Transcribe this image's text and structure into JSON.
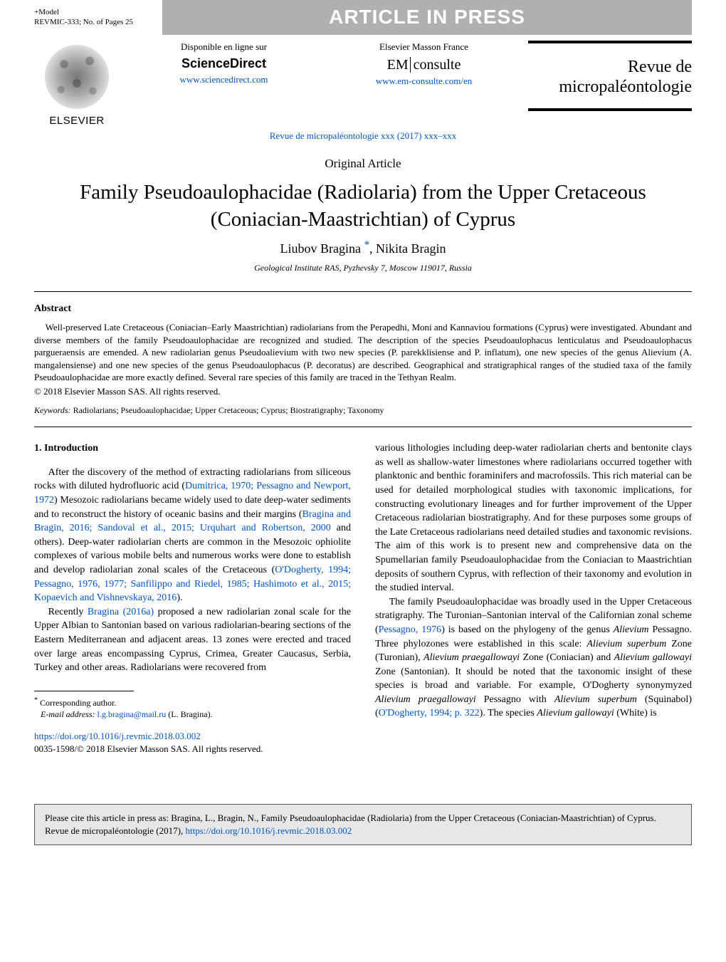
{
  "running_head": {
    "model_line": "+Model",
    "ref_line": "REVMIC-333;   No. of Pages 25",
    "banner": "ARTICLE IN PRESS"
  },
  "masthead": {
    "logo_caption": "ELSEVIER",
    "left_col": {
      "line1": "Disponible en ligne sur",
      "brand": "ScienceDirect",
      "url": "www.sciencedirect.com"
    },
    "mid_col": {
      "line1": "Elsevier Masson France",
      "brand_left": "EM",
      "brand_right": "consulte",
      "url": "www.em-consulte.com/en"
    },
    "journal_line1": "Revue de",
    "journal_line2": "micropaléontologie",
    "pub_ref_text": "Revue de micropaléontologie xxx (2017) xxx–xxx"
  },
  "article": {
    "type": "Original Article",
    "title": "Family Pseudoaulophacidae (Radiolaria) from the Upper Cretaceous (Coniacian-Maastrichtian) of Cyprus",
    "authors_html": "Liubov Bragina *, Nikita Bragin",
    "author1": "Liubov Bragina",
    "corr_mark": "*",
    "author_sep": ", ",
    "author2": "Nikita Bragin",
    "affiliation": "Geological Institute RAS, Pyzhevsky 7, Moscow 119017, Russia"
  },
  "abstract": {
    "heading": "Abstract",
    "p1": "Well-preserved Late Cretaceous (Coniacian–Early Maastrichtian) radiolarians from the Perapedhi, Moni and Kannaviou formations (Cyprus) were investigated. Abundant and diverse members of the family Pseudoaulophacidae are recognized and studied. The description of the species Pseudoaulophacus lenticulatus and Pseudoaulophacus pargueraensis are emended. A new radiolarian genus Pseudoalievium with two new species (P. parekklisiense and P. inflatum), one new species of the genus Alievium (A. mangalensiense) and one new species of the genus Pseudoaulophacus (P. decoratus) are described. Geographical and stratigraphical ranges of the studied taxa of the family Pseudoaulophacidae are more exactly defined. Several rare species of this family are traced in the Tethyan Realm.",
    "copyright": "© 2018 Elsevier Masson SAS. All rights reserved."
  },
  "keywords": {
    "label": "Keywords:",
    "text": " Radiolarians; Pseudoaulophacidae; Upper Cretaceous; Cyprus; Biostratigraphy; Taxonomy"
  },
  "section1": {
    "heading": "1.  Introduction",
    "left": {
      "p1a": "After the discovery of the method of extracting radiolarians from siliceous rocks with diluted hydrofluoric acid (",
      "c1": "Dumitrica, 1970; Pessagno and Newport, 1972",
      "p1b": ") Mesozoic radiolarians became widely used to date deep-water sediments and to reconstruct the history of oceanic basins and their margins (",
      "c2": "Bragina and Bragin, 2016; Sandoval et al., 2015; Urquhart and Robertson, 2000",
      "p1c": " and others). Deep-water radiolarian cherts are common in the Mesozoic ophiolite complexes of various mobile belts and numerous works were done to establish and develop radiolarian zonal scales of the Cretaceous (",
      "c3": "O'Dogherty, 1994; Pessagno, 1976, 1977; Sanfilippo and Riedel, 1985; Hashimoto et al., 2015; Kopaevich and Vishnevskaya, 2016",
      "p1d": ").",
      "p2a": "Recently ",
      "c4": "Bragina (2016a)",
      "p2b": " proposed a new radiolarian zonal scale for the Upper Albian to Santonian based on various radiolarian-bearing sections of the Eastern Mediterranean and adjacent areas. 13 zones were erected and traced over large areas encompassing Cyprus, Crimea, Greater Caucasus, Serbia, Turkey and other areas. Radiolarians were recovered from"
    },
    "right": {
      "p1": "various lithologies including deep-water radiolarian cherts and bentonite clays as well as shallow-water limestones where radiolarians occurred together with planktonic and benthic foraminifers and macrofossils. This rich material can be used for detailed morphological studies with taxonomic implications, for constructing evolutionary lineages and for further improvement of the Upper Cretaceous radiolarian biostratigraphy. And for these purposes some groups of the Late Cretaceous radiolarians need detailed studies and taxonomic revisions. The aim of this work is to present new and comprehensive data on the Spumellarian family Pseudoaulophacidae from the Coniacian to Maastrichtian deposits of southern Cyprus, with reflection of their taxonomy and evolution in the studied interval.",
      "p2a": "The family Pseudoaulophacidae was broadly used in the Upper Cretaceous stratigraphy. The Turonian–Santonian interval of the Californian zonal scheme (",
      "c5": "Pessagno, 1976",
      "p2b": ") is based on the phylogeny of the genus ",
      "i1": "Alievium",
      "p2c": " Pessagno. Three phylozones were established in this scale: ",
      "i2": "Alievium superbum",
      "p2d": " Zone (Turonian), ",
      "i3": "Alievium praegallowayi",
      "p2e": " Zone (Coniacian) and ",
      "i4": "Alievium gallowayi",
      "p2f": " Zone (Santonian). It should be noted that the taxonomic insight of these species is broad and variable. For example, O'Dogherty synonymyzed ",
      "i5": "Alievium praegallowayi",
      "p2g": " Pessagno with ",
      "i6": "Alievium superbum",
      "p2h": " (Squinabol) (",
      "c6": "O'Dogherty, 1994; p. 322",
      "p2i": "). The species ",
      "i7": "Alievium gallowayi",
      "p2j": " (White) is"
    }
  },
  "footnotes": {
    "corr": "Corresponding author.",
    "email_label": "E-mail address:",
    "email": "l.g.bragina@mail.ru",
    "email_tail": " (L. Bragina)."
  },
  "doi": {
    "url": "https://doi.org/10.1016/j.revmic.2018.03.002",
    "issn_line": "0035-1598/© 2018 Elsevier Masson SAS. All rights reserved."
  },
  "citebox": {
    "text_a": "Please cite this article in press as: Bragina, L., Bragin, N.,  Family Pseudoaulophacidae (Radiolaria) from the Upper Cretaceous (Coniacian-Maastrichtian) of Cyprus. Revue de micropaléontologie (2017), ",
    "url": "https://doi.org/10.1016/j.revmic.2018.03.002"
  },
  "colors": {
    "banner_bg": "#b0b0b0",
    "link": "#0056c7",
    "citebox_bg": "#e7e7e9"
  }
}
